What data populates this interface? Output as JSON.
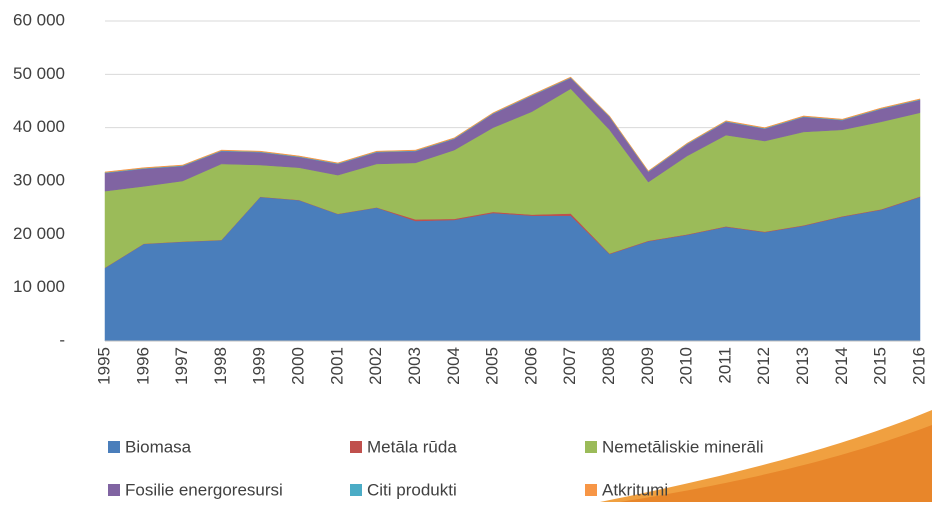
{
  "chart_data": {
    "type": "stacked_area",
    "categories": [
      "1995",
      "1996",
      "1997",
      "1998",
      "1999",
      "2000",
      "2001",
      "2002",
      "2003",
      "2004",
      "2005",
      "2006",
      "2007",
      "2008",
      "2009",
      "2010",
      "2011",
      "2012",
      "2013",
      "2014",
      "2015",
      "2016"
    ],
    "series": [
      {
        "name": "Biomasa",
        "color": "#4a7ebb",
        "values": [
          13700,
          18200,
          18600,
          18900,
          27000,
          26400,
          23800,
          25000,
          22500,
          22700,
          24000,
          23500,
          23500,
          16300,
          18700,
          19900,
          21400,
          20400,
          21600,
          23300,
          24600,
          27000
        ]
      },
      {
        "name": "Metāla rūda",
        "color": "#c0504d",
        "values": [
          50,
          50,
          50,
          50,
          50,
          50,
          50,
          50,
          300,
          200,
          200,
          200,
          400,
          100,
          100,
          100,
          100,
          100,
          100,
          100,
          100,
          100
        ]
      },
      {
        "name": "Nemetāliskie minerāli",
        "color": "#9bbb59",
        "values": [
          14350,
          10750,
          11350,
          14250,
          5950,
          6050,
          7250,
          8150,
          10600,
          12900,
          15800,
          19300,
          23400,
          23200,
          11000,
          14700,
          17100,
          17000,
          17500,
          16200,
          16400,
          15700
        ]
      },
      {
        "name": "Fosilie energoresursi",
        "color": "#8064a2",
        "values": [
          3400,
          3300,
          2800,
          2400,
          2400,
          2000,
          2100,
          2200,
          2200,
          2100,
          2600,
          3000,
          2000,
          2400,
          1900,
          2200,
          2500,
          2300,
          2800,
          1800,
          2400,
          2400
        ]
      },
      {
        "name": "Citi produkti",
        "color": "#4bacc6",
        "values": [
          100,
          100,
          100,
          100,
          100,
          100,
          100,
          100,
          100,
          100,
          100,
          100,
          100,
          100,
          100,
          100,
          100,
          100,
          100,
          100,
          100,
          100
        ]
      },
      {
        "name": "Atkritumi",
        "color": "#f79646",
        "values": [
          100,
          100,
          100,
          100,
          100,
          100,
          100,
          100,
          100,
          100,
          100,
          100,
          100,
          100,
          100,
          100,
          100,
          100,
          100,
          100,
          100,
          100
        ]
      }
    ],
    "ylim": [
      0,
      60000
    ],
    "yticks": [
      {
        "value": 0,
        "label": "-"
      },
      {
        "value": 10000,
        "label": "10 000"
      },
      {
        "value": 20000,
        "label": "20 000"
      },
      {
        "value": 30000,
        "label": "30 000"
      },
      {
        "value": 40000,
        "label": "40 000"
      },
      {
        "value": 50000,
        "label": "50 000"
      },
      {
        "value": 60000,
        "label": "60 000"
      }
    ],
    "grid": true,
    "legend": "bottom"
  }
}
